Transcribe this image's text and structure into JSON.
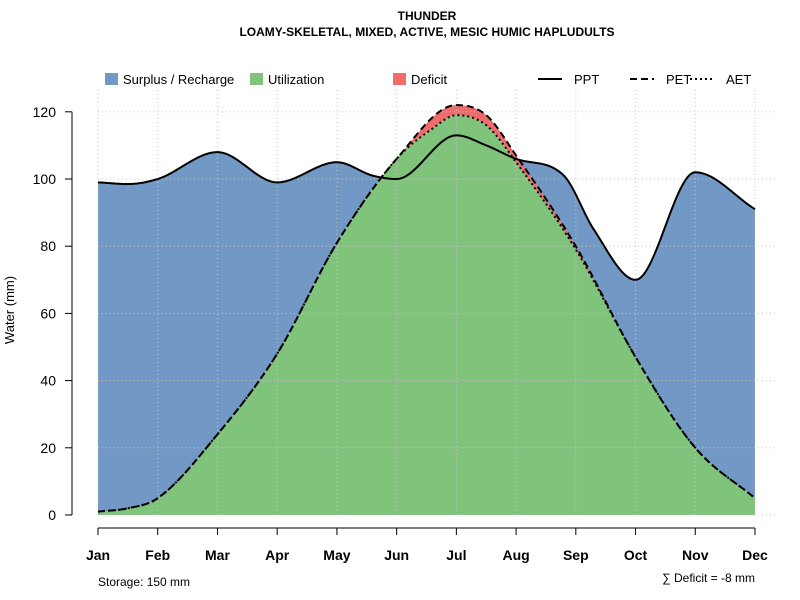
{
  "chart_data": {
    "type": "area",
    "title": "THUNDER",
    "subtitle": "LOAMY-SKELETAL, MIXED, ACTIVE, MESIC HUMIC HAPLUDULTS",
    "ylabel": "Water (mm)",
    "xlabel": "",
    "ylim": [
      0,
      125
    ],
    "yticks": [
      0,
      20,
      40,
      60,
      80,
      100,
      120
    ],
    "months": [
      "Jan",
      "Feb",
      "Mar",
      "Apr",
      "May",
      "Jun",
      "Jul",
      "Aug",
      "Sep",
      "Oct",
      "Nov",
      "Dec"
    ],
    "grid": true,
    "legend": [
      {
        "label": "Surplus / Recharge",
        "kind": "swatch",
        "color": "#7299c6"
      },
      {
        "label": "Utilization",
        "kind": "swatch",
        "color": "#80c47c"
      },
      {
        "label": "Deficit",
        "kind": "swatch",
        "color": "#f06b6b"
      },
      {
        "label": "PPT",
        "kind": "line",
        "dash": "solid"
      },
      {
        "label": "PET",
        "kind": "line",
        "dash": "dashed"
      },
      {
        "label": "AET",
        "kind": "line",
        "dash": "dotted"
      }
    ],
    "series": [
      {
        "name": "PPT",
        "points": [
          [
            1,
            99
          ],
          [
            1.5,
            98.5
          ],
          [
            2,
            100
          ],
          [
            3,
            108
          ],
          [
            4,
            99
          ],
          [
            5,
            105
          ],
          [
            5.6,
            101
          ],
          [
            6,
            100
          ],
          [
            7,
            113
          ],
          [
            7.5,
            110
          ],
          [
            8,
            106
          ],
          [
            8.8,
            101
          ],
          [
            9.3,
            85
          ],
          [
            10,
            70
          ],
          [
            11,
            102
          ],
          [
            12,
            91
          ]
        ]
      },
      {
        "name": "PET",
        "points": [
          [
            1,
            1
          ],
          [
            1.5,
            2
          ],
          [
            2,
            5
          ],
          [
            3,
            24
          ],
          [
            4,
            48
          ],
          [
            5,
            81
          ],
          [
            6,
            106
          ],
          [
            7,
            122
          ],
          [
            7.5,
            119
          ],
          [
            8,
            107
          ],
          [
            9,
            80
          ],
          [
            10,
            47
          ],
          [
            11,
            20
          ],
          [
            12,
            5
          ]
        ]
      },
      {
        "name": "AET",
        "points": [
          [
            1,
            1
          ],
          [
            1.5,
            2
          ],
          [
            2,
            5
          ],
          [
            3,
            24
          ],
          [
            4,
            48
          ],
          [
            5,
            81
          ],
          [
            6,
            106
          ],
          [
            6.6,
            115
          ],
          [
            7,
            119
          ],
          [
            7.5,
            116
          ],
          [
            8,
            105
          ],
          [
            9,
            79
          ],
          [
            10,
            47
          ],
          [
            11,
            20
          ],
          [
            12,
            5
          ]
        ]
      }
    ],
    "footer_left": "Storage: 150 mm",
    "footer_right": "∑ Deficit = -8 mm"
  }
}
